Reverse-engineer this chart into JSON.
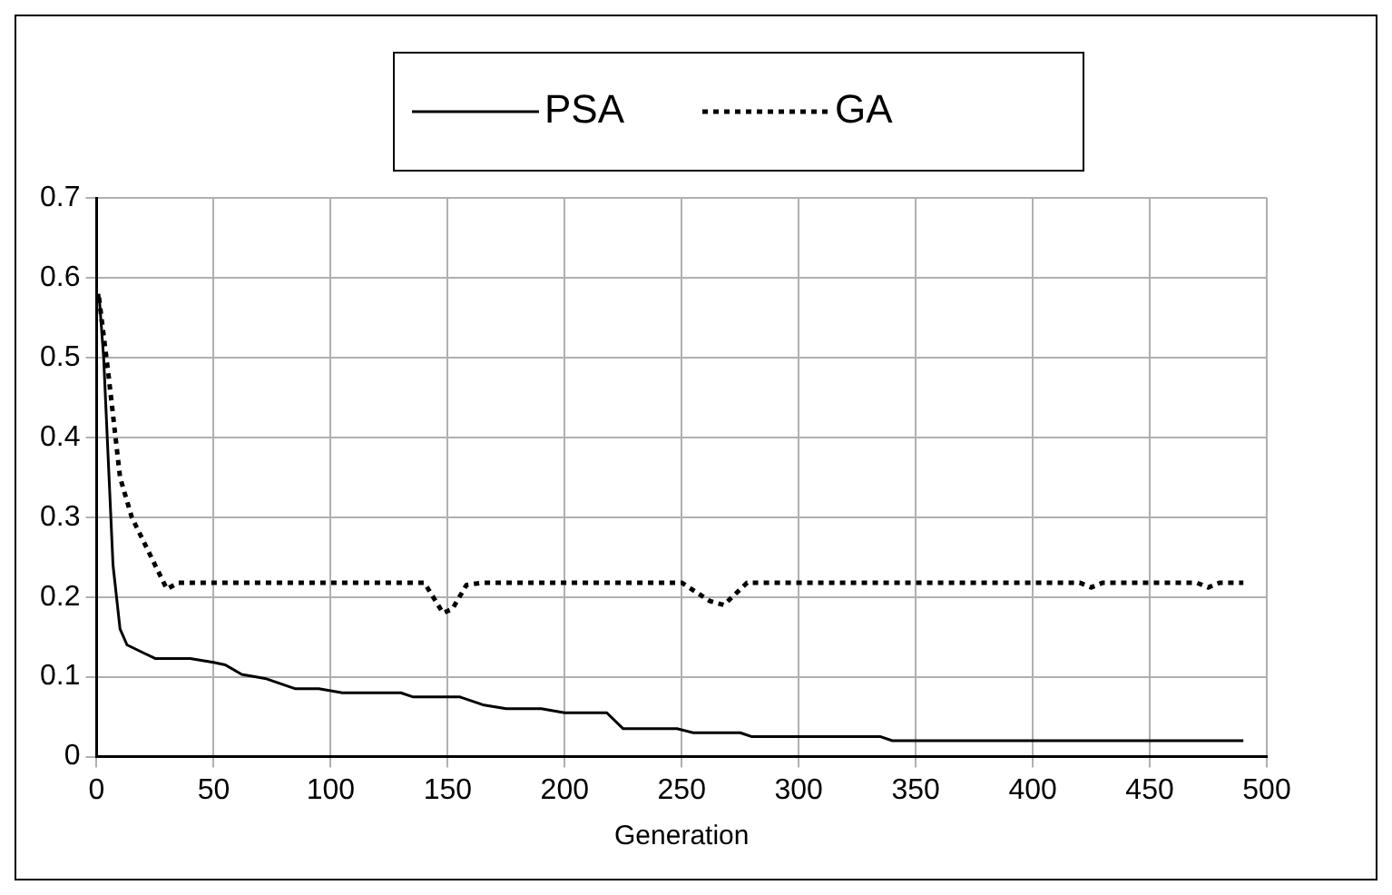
{
  "chart_data": {
    "type": "line",
    "xlabel": "Generation",
    "xlim": [
      0,
      500
    ],
    "xticks": [
      0,
      50,
      100,
      150,
      200,
      250,
      300,
      350,
      400,
      450,
      500
    ],
    "ylim": [
      0,
      0.7
    ],
    "yticks": [
      0,
      0.1,
      0.2,
      0.3,
      0.4,
      0.5,
      0.6,
      0.7
    ],
    "grid": true,
    "legend": "top",
    "marker": "none",
    "series": [
      {
        "name": "PSA",
        "color": "#000000",
        "line_style": "solid",
        "x": [
          1,
          3,
          7,
          10,
          13,
          20,
          25,
          40,
          50,
          55,
          62,
          72,
          85,
          95,
          105,
          130,
          135,
          155,
          165,
          175,
          190,
          200,
          218,
          225,
          248,
          255,
          275,
          280,
          335,
          340,
          490
        ],
        "values": [
          0.58,
          0.5,
          0.24,
          0.16,
          0.14,
          0.13,
          0.123,
          0.123,
          0.118,
          0.115,
          0.103,
          0.098,
          0.085,
          0.085,
          0.08,
          0.08,
          0.075,
          0.075,
          0.065,
          0.06,
          0.06,
          0.055,
          0.055,
          0.035,
          0.035,
          0.03,
          0.03,
          0.025,
          0.025,
          0.02,
          0.02
        ]
      },
      {
        "name": "GA",
        "color": "#000000",
        "line_style": "dotted",
        "x": [
          1,
          5,
          10,
          15,
          25,
          30,
          35,
          140,
          148,
          152,
          158,
          165,
          250,
          262,
          268,
          278,
          420,
          425,
          430,
          470,
          475,
          480,
          490
        ],
        "values": [
          0.575,
          0.48,
          0.35,
          0.3,
          0.24,
          0.21,
          0.218,
          0.218,
          0.18,
          0.185,
          0.215,
          0.218,
          0.218,
          0.195,
          0.19,
          0.218,
          0.218,
          0.212,
          0.218,
          0.218,
          0.212,
          0.218,
          0.218
        ]
      }
    ]
  }
}
